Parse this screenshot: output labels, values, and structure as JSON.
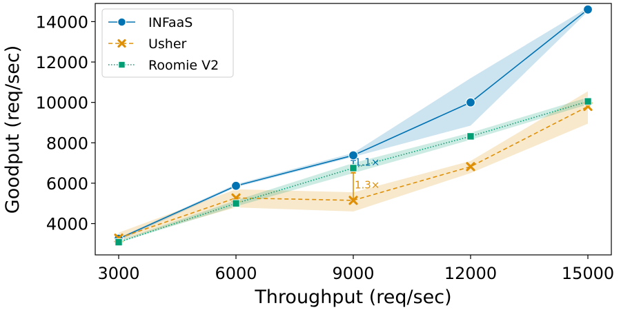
{
  "chart_data": {
    "type": "line",
    "xlabel": "Throughput (req/sec)",
    "ylabel": "Goodput (req/sec)",
    "x": [
      3000,
      6000,
      9000,
      12000,
      15000
    ],
    "xlim": [
      2400,
      15600
    ],
    "ylim": [
      2450,
      14900
    ],
    "xticks": [
      3000,
      6000,
      9000,
      12000,
      15000
    ],
    "yticks": [
      4000,
      6000,
      8000,
      10000,
      12000,
      14000
    ],
    "grid": false,
    "legend_position": "top-left",
    "series": [
      {
        "name": "INFaaS",
        "color": "#0173b2",
        "marker": "circle",
        "line_style": "solid",
        "values": [
          3250,
          5870,
          7380,
          10000,
          14600
        ],
        "band_low": [
          3150,
          5800,
          7300,
          8850,
          14500
        ],
        "band_high": [
          3300,
          5950,
          7500,
          11200,
          14700
        ]
      },
      {
        "name": "Usher",
        "color": "#de8f05",
        "marker": "x",
        "line_style": "dashed",
        "values": [
          3280,
          5270,
          5150,
          6820,
          9800
        ],
        "band_low": [
          3150,
          4800,
          4600,
          6500,
          8950
        ],
        "band_high": [
          3550,
          5700,
          5550,
          7100,
          10550
        ]
      },
      {
        "name": "Roomie V2",
        "color": "#029e73",
        "marker": "square",
        "line_style": "dotted",
        "values": [
          3080,
          5000,
          6750,
          8320,
          10050
        ],
        "band_low": [
          3050,
          4850,
          6500,
          8150,
          9900
        ],
        "band_high": [
          3150,
          5150,
          7000,
          8500,
          10250
        ]
      }
    ],
    "annotations": [
      {
        "text": "1.1×",
        "color": "#0173b2",
        "x": 9000,
        "from_y": 6750,
        "to_y": 7380
      },
      {
        "text": "1.3×",
        "color": "#de8f05",
        "x": 9000,
        "from_y": 5150,
        "to_y": 6750
      }
    ]
  }
}
